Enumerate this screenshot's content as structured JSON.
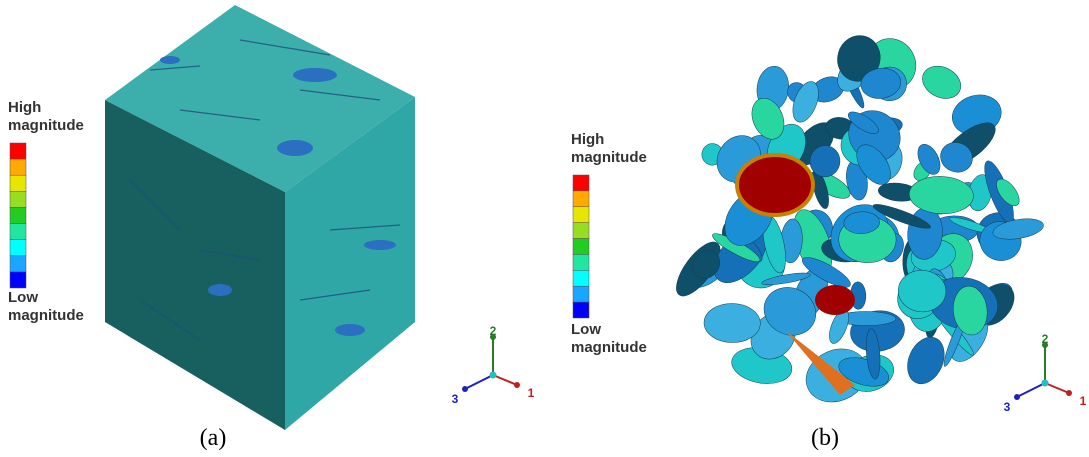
{
  "colorbar": [
    "#ff0000",
    "#ffaa00",
    "#e6e600",
    "#99dd22",
    "#22cc22",
    "#22e6a0",
    "#00ffff",
    "#1aa6ff",
    "#0000ff"
  ],
  "panels": [
    {
      "high": [
        "High",
        "magnitude"
      ],
      "low": [
        "Low",
        "magnitude"
      ],
      "triad": [
        "2",
        "1",
        "3"
      ],
      "caption": "(a)"
    },
    {
      "high": [
        "High",
        "magnitude"
      ],
      "low": [
        "Low",
        "magnitude"
      ],
      "triad": [
        "2",
        "1",
        "3"
      ],
      "caption": "(b)"
    }
  ]
}
